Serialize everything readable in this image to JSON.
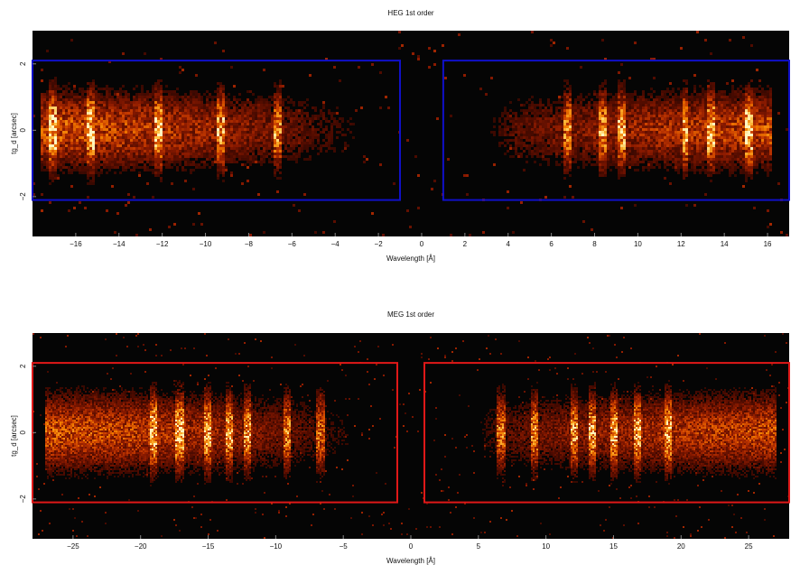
{
  "colors": {
    "background": "#050505",
    "heg_box": "#1010c8",
    "meg_box": "#e01818",
    "colormap": [
      "#050505",
      "#4a0a00",
      "#8b1a00",
      "#c83c00",
      "#f07a00",
      "#ffc040",
      "#fff6c0"
    ]
  },
  "chart_data": [
    {
      "type": "heatmap",
      "title": "HEG 1st order",
      "xlabel": "Wavelength [Å]",
      "ylabel": "tg_d [arcsec]",
      "xlim": [
        -18,
        17
      ],
      "ylim": [
        -3.2,
        3.0
      ],
      "xticks": [
        -16,
        -14,
        -12,
        -10,
        -8,
        -6,
        -4,
        -2,
        0,
        2,
        4,
        6,
        8,
        10,
        12,
        14,
        16
      ],
      "yticks": [
        -2,
        0,
        2
      ],
      "extraction_regions": [
        {
          "x": [
            -18,
            -1
          ],
          "y": [
            -2.1,
            2.1
          ]
        },
        {
          "x": [
            1,
            17
          ],
          "y": [
            -2.1,
            2.1
          ]
        }
      ],
      "emission_lines": [
        -17.1,
        -15.3,
        -12.2,
        -9.3,
        -6.7,
        6.7,
        8.4,
        9.2,
        12.2,
        13.4,
        15.1
      ],
      "source_extent": {
        "negative": [
          -17.6,
          -2.0
        ],
        "positive": [
          2.0,
          16.2
        ]
      }
    },
    {
      "type": "heatmap",
      "title": "MEG 1st order",
      "xlabel": "Wavelength [Å]",
      "ylabel": "tg_d [arcsec]",
      "xlim": [
        -28,
        28
      ],
      "ylim": [
        -3.2,
        3.0
      ],
      "xticks": [
        -25,
        -20,
        -15,
        -10,
        -5,
        0,
        5,
        10,
        15,
        20,
        25
      ],
      "yticks": [
        -2,
        0,
        2
      ],
      "extraction_regions": [
        {
          "x": [
            -28,
            -1
          ],
          "y": [
            -2.1,
            2.1
          ]
        },
        {
          "x": [
            1,
            28
          ],
          "y": [
            -2.1,
            2.1
          ]
        }
      ],
      "emission_lines": [
        -19.0,
        -17.1,
        -15.0,
        -13.4,
        -12.1,
        -9.2,
        -6.7,
        6.7,
        9.2,
        12.1,
        13.4,
        15.0,
        16.8,
        19.0
      ],
      "source_extent": {
        "negative": [
          -27.0,
          -3.0
        ],
        "positive": [
          3.0,
          27.0
        ]
      }
    }
  ]
}
